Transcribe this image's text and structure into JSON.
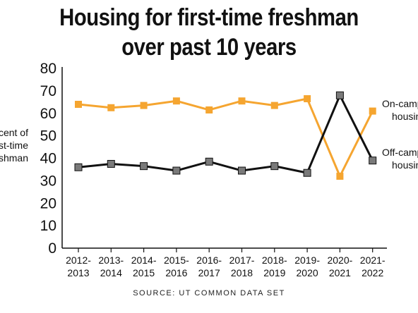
{
  "chart_data": {
    "type": "line",
    "title_lines": [
      "Housing for first-time freshman",
      "over past 10 years"
    ],
    "ylabel_lines": [
      "Percent of",
      "first-time",
      "freshman"
    ],
    "xlabel": "",
    "ylim": [
      0,
      80
    ],
    "yticks": [
      0,
      10,
      20,
      30,
      40,
      50,
      60,
      70,
      80
    ],
    "grid": false,
    "categories": [
      [
        "2012-",
        "2013"
      ],
      [
        "2013-",
        "2014"
      ],
      [
        "2014-",
        "2015"
      ],
      [
        "2015-",
        "2016"
      ],
      [
        "2016-",
        "2017"
      ],
      [
        "2017-",
        "2018"
      ],
      [
        "2018-",
        "2019"
      ],
      [
        "2019-",
        "2020"
      ],
      [
        "2020-",
        "2021"
      ],
      [
        "2021-",
        "2022"
      ]
    ],
    "series": [
      {
        "name_lines": [
          "On-campus",
          "housing"
        ],
        "color": "#f5a530",
        "values": [
          64,
          62.5,
          63.5,
          65.5,
          61.5,
          65.5,
          63.5,
          66.5,
          32,
          61
        ]
      },
      {
        "name_lines": [
          "Off-campus",
          "housing"
        ],
        "color": "#111111",
        "marker_color": "#7a7a7a",
        "values": [
          36,
          37.5,
          36.5,
          34.5,
          38.5,
          34.5,
          36.5,
          33.5,
          68,
          39
        ]
      }
    ],
    "source": "SOURCE: UT COMMON DATA SET"
  }
}
